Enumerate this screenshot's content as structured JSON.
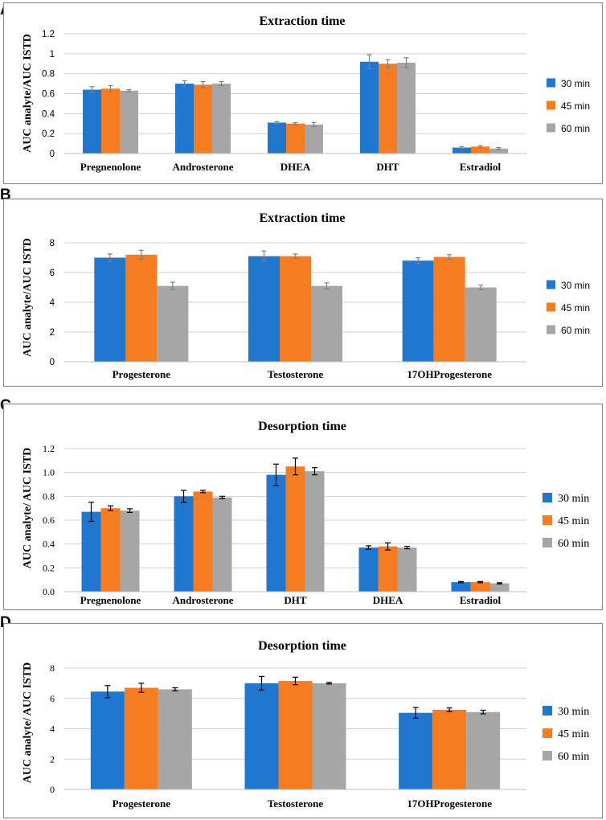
{
  "chart_data": [
    {
      "panel": "A",
      "type": "bar",
      "title": "Extraction time",
      "xlabel": "",
      "ylabel": "AUC analyte/AUC ISTD",
      "ylim": [
        0,
        1.2
      ],
      "yticks": [
        "0",
        "0.2",
        "0.4",
        "0.6",
        "0.8",
        "1",
        "1.2"
      ],
      "categories": [
        "Pregnenolone",
        "Androsterone",
        "DHEA",
        "DHT",
        "Estradiol"
      ],
      "series": [
        {
          "name": "30 min",
          "color": "#1f77d0",
          "values": [
            0.64,
            0.7,
            0.31,
            0.92,
            0.06
          ],
          "errors": [
            0.03,
            0.03,
            0.01,
            0.07,
            0.01
          ]
        },
        {
          "name": "45 min",
          "color": "#f57c20",
          "values": [
            0.65,
            0.69,
            0.3,
            0.9,
            0.07
          ],
          "errors": [
            0.03,
            0.03,
            0.01,
            0.04,
            0.01
          ]
        },
        {
          "name": "60 min",
          "color": "#a6a6a6",
          "values": [
            0.63,
            0.7,
            0.29,
            0.91,
            0.05
          ],
          "errors": [
            0.01,
            0.02,
            0.02,
            0.05,
            0.01
          ]
        }
      ],
      "errorbar_color": "#808080",
      "legend_position": "right"
    },
    {
      "panel": "B",
      "type": "bar",
      "title": "Extraction time",
      "xlabel": "",
      "ylabel": "AUC analyte/AUC ISTD",
      "ylim": [
        0,
        8
      ],
      "yticks": [
        "0",
        "2",
        "4",
        "6",
        "8"
      ],
      "categories": [
        "Progesterone",
        "Testosterone",
        "17OHProgesterone"
      ],
      "series": [
        {
          "name": "30 min",
          "color": "#1f77d0",
          "values": [
            7.0,
            7.1,
            6.8
          ],
          "errors": [
            0.25,
            0.35,
            0.2
          ]
        },
        {
          "name": "45 min",
          "color": "#f57c20",
          "values": [
            7.2,
            7.1,
            7.05
          ],
          "errors": [
            0.3,
            0.15,
            0.15
          ]
        },
        {
          "name": "60 min",
          "color": "#a6a6a6",
          "values": [
            5.1,
            5.1,
            5.0
          ],
          "errors": [
            0.25,
            0.2,
            0.15
          ]
        }
      ],
      "errorbar_color": "#808080",
      "legend_position": "right"
    },
    {
      "panel": "C",
      "type": "bar",
      "title": "Desorption time",
      "xlabel": "",
      "ylabel": "AUC analyte/ AUC ISTD",
      "ylim": [
        0,
        1.2
      ],
      "yticks": [
        "0.0",
        "0.2",
        "0.4",
        "0.6",
        "0.8",
        "1.0",
        "1.2"
      ],
      "categories": [
        "Pregnenolone",
        "Androsterone",
        "DHT",
        "DHEA",
        "Estradiol"
      ],
      "series": [
        {
          "name": "30 min",
          "color": "#1f77d0",
          "values": [
            0.67,
            0.8,
            0.98,
            0.37,
            0.08
          ],
          "errors": [
            0.08,
            0.05,
            0.09,
            0.015,
            0.005
          ]
        },
        {
          "name": "45 min",
          "color": "#f57c20",
          "values": [
            0.7,
            0.84,
            1.05,
            0.38,
            0.08
          ],
          "errors": [
            0.02,
            0.01,
            0.07,
            0.03,
            0.005
          ]
        },
        {
          "name": "60 min",
          "color": "#a6a6a6",
          "values": [
            0.68,
            0.79,
            1.01,
            0.37,
            0.07
          ],
          "errors": [
            0.015,
            0.01,
            0.03,
            0.01,
            0.005
          ]
        }
      ],
      "errorbar_color": "#000000",
      "legend_position": "right"
    },
    {
      "panel": "D",
      "type": "bar",
      "title": "Desorption time",
      "xlabel": "",
      "ylabel": "AUC analyte/ AUC ISTD",
      "ylim": [
        0,
        8
      ],
      "yticks": [
        "0",
        "2",
        "4",
        "6",
        "8"
      ],
      "categories": [
        "Progesterone",
        "Testosterone",
        "17OHProgesterone"
      ],
      "series": [
        {
          "name": "30 min",
          "color": "#1f77d0",
          "values": [
            6.45,
            7.0,
            5.05
          ],
          "errors": [
            0.4,
            0.45,
            0.35
          ]
        },
        {
          "name": "45 min",
          "color": "#f57c20",
          "values": [
            6.7,
            7.15,
            5.25
          ],
          "errors": [
            0.3,
            0.25,
            0.12
          ]
        },
        {
          "name": "60 min",
          "color": "#a6a6a6",
          "values": [
            6.6,
            7.0,
            5.1
          ],
          "errors": [
            0.1,
            0.05,
            0.12
          ]
        }
      ],
      "errorbar_color": "#000000",
      "legend_position": "right"
    }
  ]
}
